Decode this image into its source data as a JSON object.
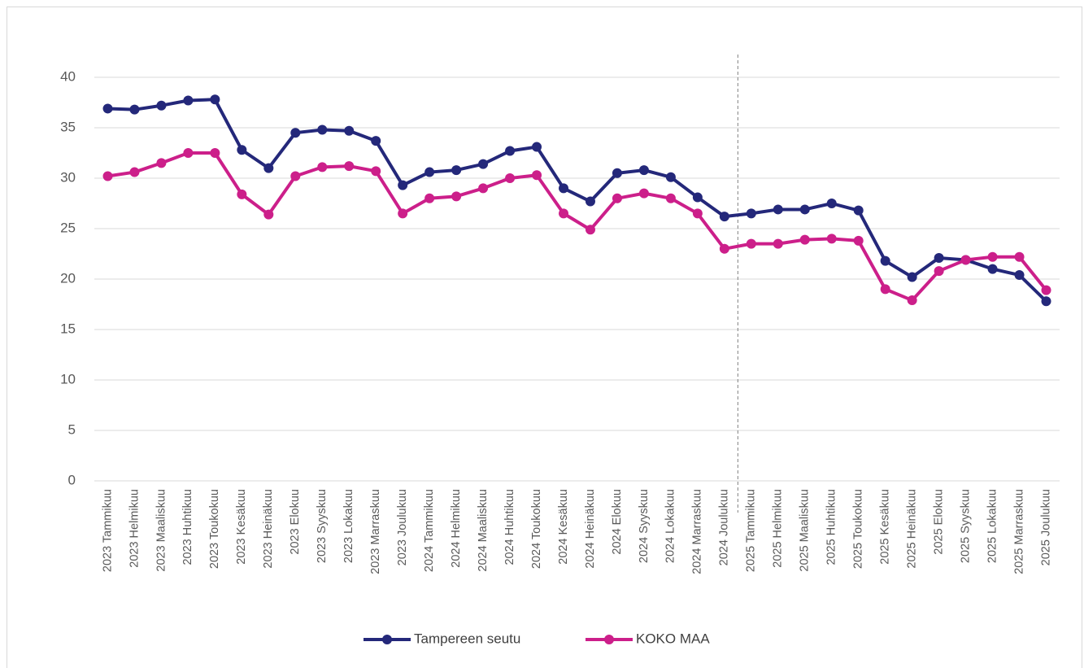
{
  "chart_data": {
    "type": "line",
    "categories": [
      "2023 Tammikuu",
      "2023 Helmikuu",
      "2023 Maaliskuu",
      "2023 Huhtikuu",
      "2023 Toukokuu",
      "2023 Kesäkuu",
      "2023 Heinäkuu",
      "2023 Elokuu",
      "2023 Syyskuu",
      "2023 Lokakuu",
      "2023 Marraskuu",
      "2023 Joulukuu",
      "2024 Tammikuu",
      "2024 Helmikuu",
      "2024 Maaliskuu",
      "2024 Huhtikuu",
      "2024 Toukokuu",
      "2024 Kesäkuu",
      "2024 Heinäkuu",
      "2024 Elokuu",
      "2024 Syyskuu",
      "2024 Lokakuu",
      "2024 Marraskuu",
      "2024 Joulukuu",
      "2025 Tammikuu",
      "2025 Helmikuu",
      "2025 Maaliskuu",
      "2025 Huhtikuu",
      "2025 Toukokuu",
      "2025 Kesäkuu",
      "2025 Heinäkuu",
      "2025 Elokuu",
      "2025 Syyskuu",
      "2025 Lokakuu",
      "2025 Marraskuu",
      "2025 Joulukuu"
    ],
    "series": [
      {
        "name": "Tampereen seutu",
        "color": "#24287a",
        "values": [
          36.9,
          36.8,
          37.2,
          37.7,
          37.8,
          32.8,
          31.0,
          34.5,
          34.8,
          34.7,
          33.7,
          29.3,
          30.6,
          30.8,
          31.4,
          32.7,
          33.1,
          29.0,
          27.7,
          30.5,
          30.8,
          30.1,
          28.1,
          26.2,
          26.5,
          26.9,
          26.9,
          27.5,
          26.8,
          21.8,
          20.2,
          22.1,
          21.9,
          21.0,
          20.4,
          17.8
        ]
      },
      {
        "name": "KOKO MAA",
        "color": "#cc1f8a",
        "values": [
          30.2,
          30.6,
          31.5,
          32.5,
          32.5,
          28.4,
          26.4,
          30.2,
          31.1,
          31.2,
          30.7,
          26.5,
          28.0,
          28.2,
          29.0,
          30.0,
          30.3,
          26.5,
          24.9,
          28.0,
          28.5,
          28.0,
          26.5,
          23.0,
          23.5,
          23.5,
          23.9,
          24.0,
          23.8,
          19.0,
          17.9,
          20.8,
          21.9,
          22.2,
          22.2,
          18.9
        ]
      }
    ],
    "ylim": [
      0,
      40
    ],
    "yticks": [
      0,
      5,
      10,
      15,
      20,
      25,
      30,
      35,
      40
    ],
    "grid": true,
    "legend": "bottom"
  }
}
